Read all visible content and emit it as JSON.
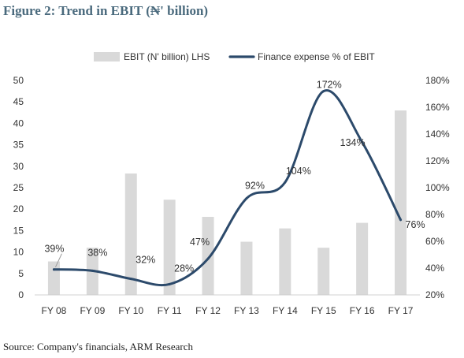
{
  "figure": {
    "title": "Figure 2: Trend in EBIT (₦' billion)",
    "source": "Source: Company's financials, ARM Research"
  },
  "chart_data": {
    "type": "bar+line",
    "title": "Figure 2: Trend in EBIT (₦' billion)",
    "categories": [
      "FY 08",
      "FY 09",
      "FY 10",
      "FY 11",
      "FY 12",
      "FY 13",
      "FY 14",
      "FY 15",
      "FY 16",
      "FY 17"
    ],
    "series": [
      {
        "name": "EBIT (N' billion) LHS",
        "type": "bar",
        "axis": "left",
        "color": "#d9d9d9",
        "values": [
          7.8,
          11,
          28.3,
          22.2,
          18.2,
          12.4,
          15.5,
          11,
          16.8,
          43
        ]
      },
      {
        "name": "Finance expense % of EBIT",
        "type": "line",
        "axis": "right",
        "color": "#2c4a6b",
        "values": [
          39,
          38,
          32,
          28,
          47,
          92,
          104,
          172,
          134,
          76
        ],
        "labels": [
          "39%",
          "38%",
          "32%",
          "28%",
          "47%",
          "92%",
          "104%",
          "172%",
          "134%",
          "76%"
        ]
      }
    ],
    "y_left": {
      "ylim": [
        0,
        50
      ],
      "ticks": [
        0,
        5,
        10,
        15,
        20,
        25,
        30,
        35,
        40,
        45,
        50
      ],
      "tick_labels": [
        "0",
        "5",
        "10",
        "15",
        "20",
        "25",
        "30",
        "35",
        "40",
        "45",
        "50"
      ]
    },
    "y_right": {
      "ylim": [
        20,
        180
      ],
      "ticks": [
        20,
        40,
        60,
        80,
        100,
        120,
        140,
        160,
        180
      ],
      "tick_labels": [
        "20%",
        "40%",
        "60%",
        "80%",
        "100%",
        "120%",
        "140%",
        "160%",
        "180%"
      ]
    },
    "grid": false,
    "legend_position": "top"
  }
}
